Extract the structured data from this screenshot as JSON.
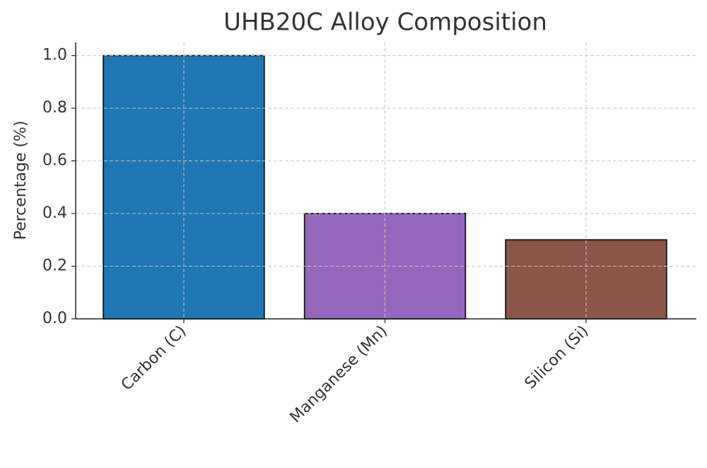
{
  "chart_data": {
    "type": "bar",
    "title": "UHB20C Alloy Composition",
    "y_label": "Percentage (%)",
    "categories": [
      "Carbon (C)",
      "Manganese (Mn)",
      "Silicon (Si)"
    ],
    "values": [
      1.0,
      0.4,
      0.3
    ],
    "colors": [
      "#1f77b4",
      "#9467bd",
      "#8c564b"
    ],
    "ylim": [
      0,
      1.05
    ],
    "yticks": [
      {
        "value": 0,
        "label": "0.0"
      },
      0.2,
      0.4,
      0.6,
      0.8,
      {
        "value": 1,
        "label": "1.0"
      }
    ],
    "grid": true
  }
}
